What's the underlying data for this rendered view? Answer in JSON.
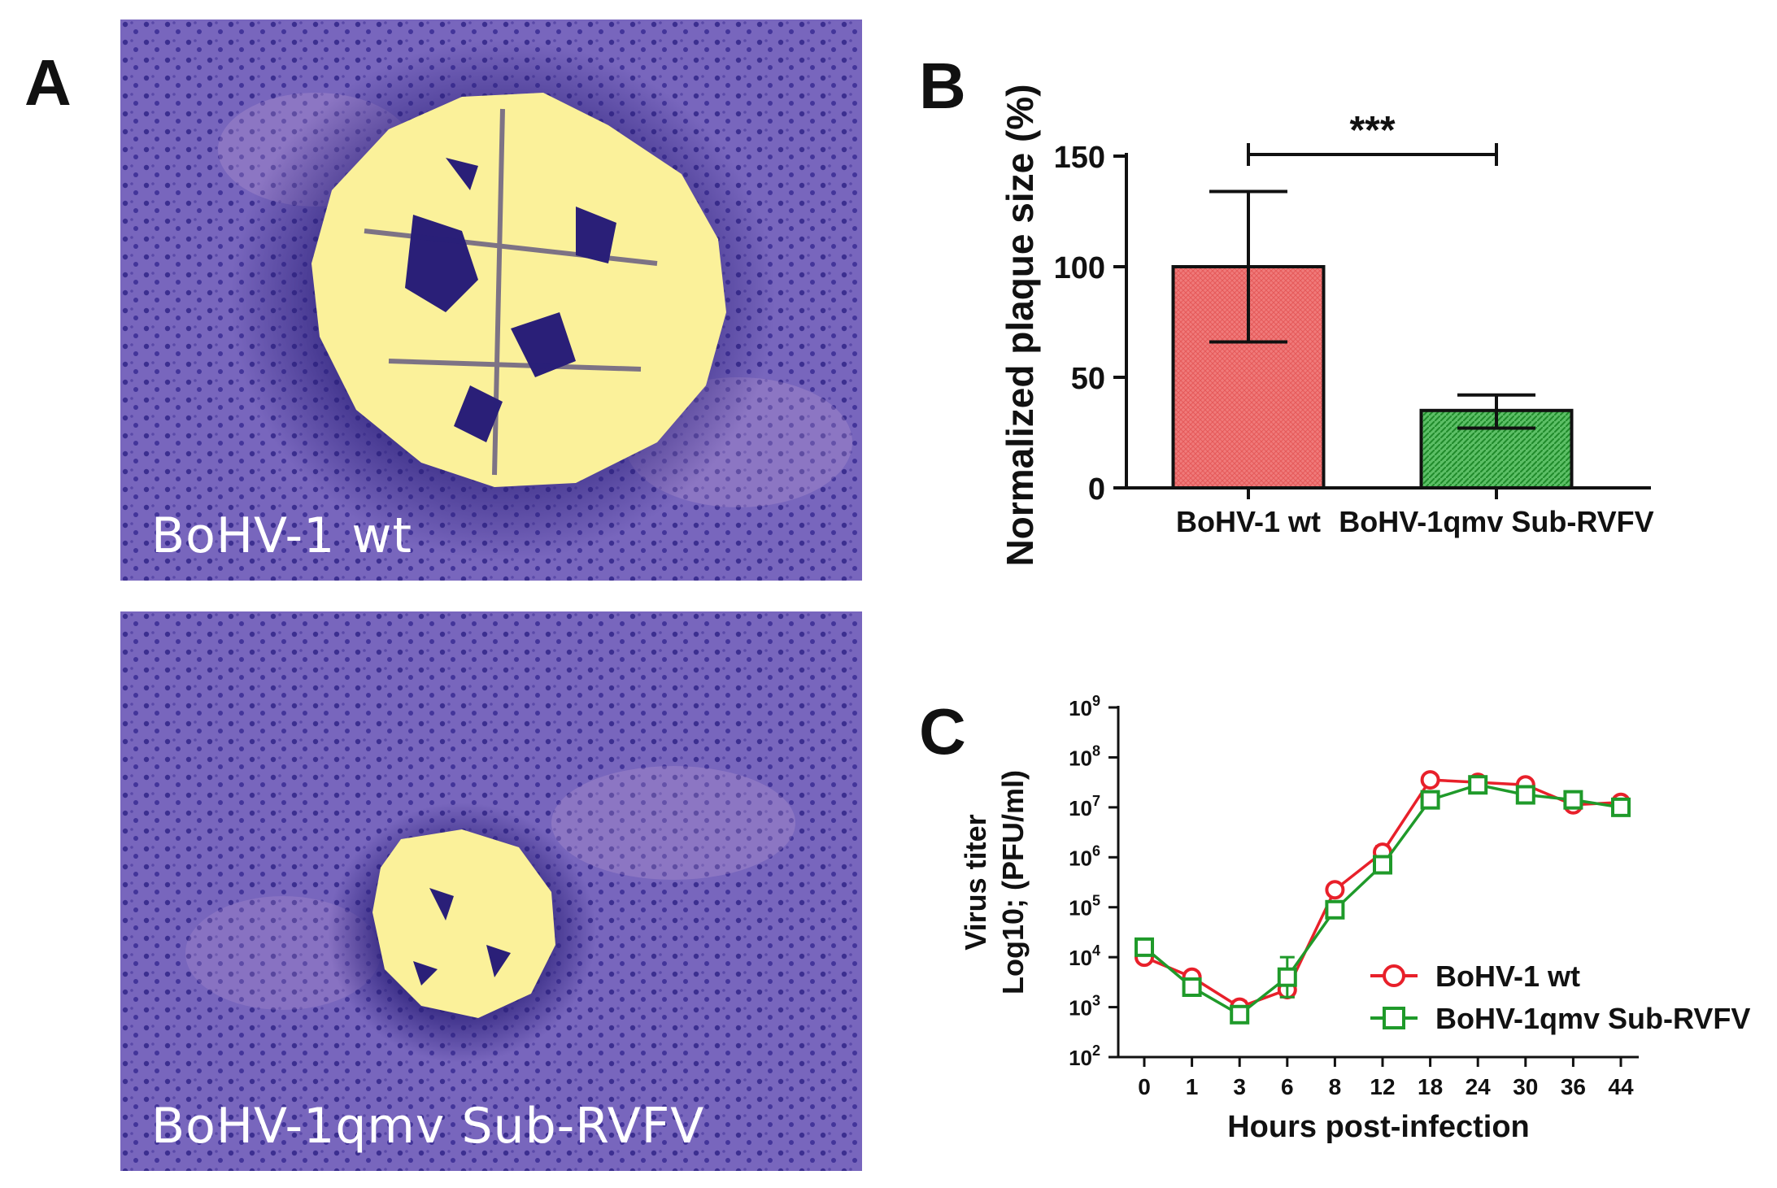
{
  "figure": {
    "panel_a": {
      "letter": "A",
      "images": [
        {
          "label": "BoHV-1 wt",
          "plaque": "large"
        },
        {
          "label": "BoHV-1qmv Sub-RVFV",
          "plaque": "small"
        }
      ],
      "colors": {
        "stain": "#6a58b0",
        "stain_dark": "#3c2f90",
        "plaque": "#fbf19a"
      }
    },
    "panel_b": {
      "letter": "B"
    },
    "panel_c": {
      "letter": "C"
    }
  },
  "chart_data": [
    {
      "type": "bar",
      "title": "",
      "ylabel": "Normalized plaque size (%)",
      "xlabel": "",
      "categories": [
        "BoHV-1 wt",
        "BoHV-1qmv Sub-RVFV"
      ],
      "values": [
        100,
        35
      ],
      "error_low": [
        66,
        27
      ],
      "error_high": [
        134,
        42
      ],
      "ylim": [
        0,
        150
      ],
      "yticks": [
        0,
        50,
        100,
        150
      ],
      "significance": {
        "label": "***",
        "between": [
          0,
          1
        ]
      },
      "colors": [
        "#ef6b6b",
        "#3aa84a"
      ]
    },
    {
      "type": "line",
      "title": "",
      "ylabel_line1": "Virus titer",
      "ylabel_line2": "Log10; (PFU/ml)",
      "xlabel": "Hours post-infection",
      "x": [
        "0",
        "1",
        "3",
        "6",
        "8",
        "12",
        "18",
        "24",
        "30",
        "36",
        "44"
      ],
      "yscale": "log10",
      "ylim_exp": [
        2,
        9
      ],
      "ytick_base": "10",
      "yticks_exp": [
        2,
        3,
        4,
        5,
        6,
        7,
        8,
        9
      ],
      "legend_position": "right",
      "series": [
        {
          "name": "BoHV-1 wt",
          "marker": "circle",
          "color": "#e8202a",
          "log10_values": [
            4.0,
            3.6,
            3.0,
            3.35,
            5.35,
            6.1,
            7.55,
            7.5,
            7.45,
            7.05,
            7.1
          ],
          "err": [
            0,
            0,
            0.12,
            0.15,
            0,
            0.12,
            0,
            0,
            0,
            0,
            0
          ]
        },
        {
          "name": "BoHV-1qmv Sub-RVFV",
          "marker": "square",
          "color": "#1f9a2a",
          "log10_values": [
            4.2,
            3.4,
            2.85,
            3.6,
            4.95,
            5.85,
            7.15,
            7.45,
            7.25,
            7.15,
            7.0
          ],
          "err": [
            0,
            0,
            0.1,
            0.4,
            0,
            0.1,
            0,
            0,
            0,
            0,
            0
          ]
        }
      ]
    }
  ]
}
